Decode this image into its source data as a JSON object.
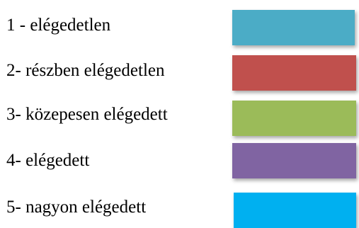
{
  "legend": {
    "items": [
      {
        "label": "1 - elégedetlen",
        "color": "#4BACC6"
      },
      {
        "label": "2- részben elégedetlen",
        "color": "#C0504D"
      },
      {
        "label": "3- közepesen elégedett",
        "color": "#9BBB59"
      },
      {
        "label": "4- elégedett",
        "color": "#8064A2"
      },
      {
        "label": "5- nagyon elégedett",
        "color": "#00B0F0"
      }
    ]
  }
}
